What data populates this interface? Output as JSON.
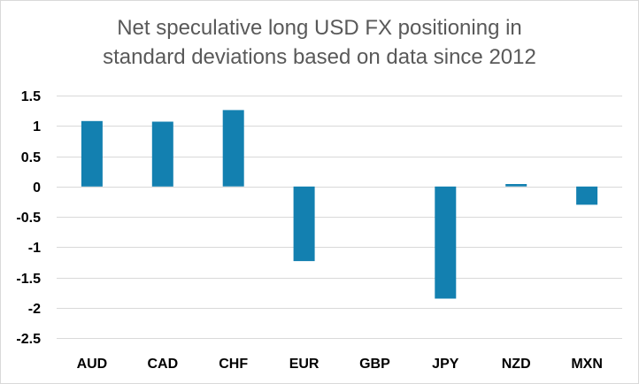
{
  "chart_data": {
    "type": "bar",
    "title_lines": [
      "Net speculative long USD FX positioning in",
      "standard deviations based on data since 2012"
    ],
    "categories": [
      "AUD",
      "CAD",
      "CHF",
      "EUR",
      "GBP",
      "JPY",
      "NZD",
      "MXN"
    ],
    "values": [
      1.08,
      1.07,
      1.26,
      -1.23,
      0.0,
      -1.85,
      0.04,
      -0.3
    ],
    "y_ticks": [
      "1.5",
      "1",
      "0.5",
      "0",
      "-0.5",
      "-1",
      "-1.5",
      "-2",
      "-2.5"
    ],
    "ylim": [
      -2.5,
      1.5
    ],
    "xlabel": "",
    "ylabel": "",
    "gridlines": true,
    "legend": "none",
    "bar_color": "#1380b0",
    "grid_color": "#d9d9d9"
  }
}
